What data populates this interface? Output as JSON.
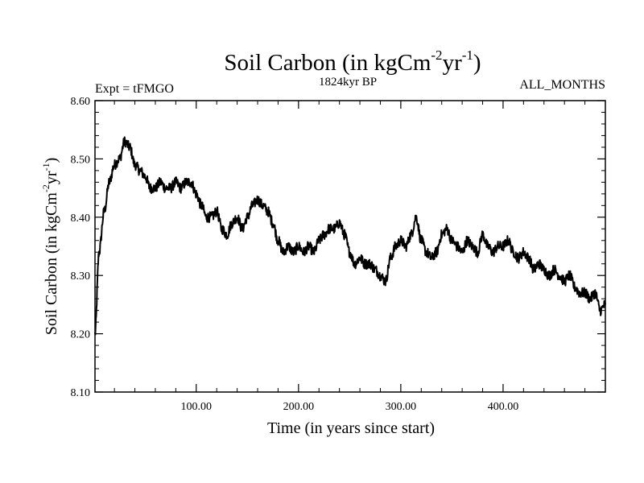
{
  "chart_data": {
    "type": "line",
    "title": "Soil Carbon (in kgCm",
    "title_sup1": "-2",
    "title_mid": "yr",
    "title_sup2": "-1",
    "title_end": ")",
    "subtitle_left": "Expt = tFMGO",
    "subtitle_center": "1824kyr BP",
    "subtitle_right": "ALL_MONTHS",
    "xlabel": "Time (in years since start)",
    "ylabel": "Soil Carbon (in kgCm",
    "ylabel_sup1": "-2",
    "ylabel_mid": "yr",
    "ylabel_sup2": "-1",
    "ylabel_end": ")",
    "xlim": [
      1,
      500
    ],
    "ylim": [
      8.1,
      8.6
    ],
    "x_ticks": [
      100,
      200,
      300,
      400
    ],
    "x_tick_labels": [
      "100.00",
      "200.00",
      "300.00",
      "400.00"
    ],
    "y_ticks": [
      8.1,
      8.2,
      8.3,
      8.4,
      8.5,
      8.6
    ],
    "y_tick_labels": [
      "8.10",
      "8.20",
      "8.30",
      "8.40",
      "8.50",
      "8.60"
    ],
    "series": [
      {
        "name": "Soil Carbon",
        "color": "#000000",
        "x": [
          1,
          5,
          10,
          15,
          20,
          25,
          30,
          35,
          40,
          45,
          50,
          55,
          60,
          65,
          70,
          75,
          80,
          85,
          90,
          95,
          100,
          105,
          110,
          115,
          120,
          125,
          130,
          135,
          140,
          145,
          150,
          155,
          160,
          165,
          170,
          175,
          180,
          185,
          190,
          195,
          200,
          205,
          210,
          215,
          220,
          225,
          230,
          235,
          240,
          245,
          250,
          255,
          260,
          265,
          270,
          275,
          280,
          285,
          290,
          295,
          300,
          305,
          310,
          315,
          320,
          325,
          330,
          335,
          340,
          345,
          350,
          355,
          360,
          365,
          370,
          375,
          380,
          385,
          390,
          395,
          400,
          405,
          410,
          415,
          420,
          425,
          430,
          435,
          440,
          445,
          450,
          455,
          460,
          465,
          470,
          475,
          480,
          485,
          490,
          495,
          500
        ],
        "values": [
          8.2,
          8.34,
          8.41,
          8.46,
          8.49,
          8.5,
          8.53,
          8.52,
          8.49,
          8.48,
          8.47,
          8.45,
          8.45,
          8.46,
          8.45,
          8.45,
          8.46,
          8.45,
          8.46,
          8.46,
          8.44,
          8.42,
          8.4,
          8.4,
          8.41,
          8.38,
          8.37,
          8.39,
          8.4,
          8.38,
          8.4,
          8.42,
          8.43,
          8.42,
          8.41,
          8.39,
          8.36,
          8.34,
          8.35,
          8.34,
          8.35,
          8.34,
          8.35,
          8.34,
          8.36,
          8.37,
          8.38,
          8.38,
          8.39,
          8.37,
          8.34,
          8.32,
          8.33,
          8.32,
          8.32,
          8.31,
          8.3,
          8.29,
          8.33,
          8.35,
          8.36,
          8.35,
          8.37,
          8.4,
          8.36,
          8.34,
          8.33,
          8.34,
          8.37,
          8.38,
          8.36,
          8.35,
          8.34,
          8.36,
          8.35,
          8.34,
          8.37,
          8.35,
          8.34,
          8.35,
          8.35,
          8.36,
          8.34,
          8.33,
          8.34,
          8.33,
          8.31,
          8.32,
          8.31,
          8.3,
          8.31,
          8.3,
          8.29,
          8.3,
          8.28,
          8.27,
          8.27,
          8.26,
          8.27,
          8.24,
          8.25
        ]
      }
    ]
  }
}
